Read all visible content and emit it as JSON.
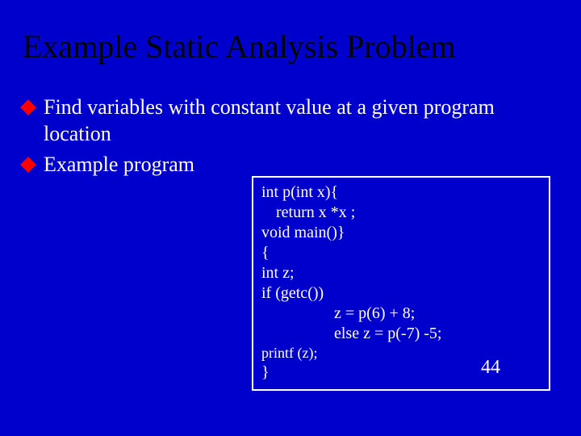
{
  "colors": {
    "background": "#0000cc",
    "title": "#000000",
    "text": "#ffffff",
    "bullet_marker": "#ff0000",
    "box_border": "#ffffff"
  },
  "typography": {
    "family": "Times New Roman",
    "title_fontsize": 40,
    "body_fontsize": 26,
    "code_fontsize": 20
  },
  "title": "Example Static Analysis Problem",
  "bullets": [
    "Find variables with constant value at a given program location",
    "Example program"
  ],
  "code": {
    "l1": "int p(int x){",
    "l2": "return x *x ;",
    "l3": "void main()}",
    "l4": "{",
    "l5": "int z;",
    "l6": "if (getc())",
    "l7": "z = p(6) + 8;",
    "l8": "else z = p(-7) -5;",
    "l9": "printf (z);",
    "l10": "}"
  },
  "page_number": "44"
}
